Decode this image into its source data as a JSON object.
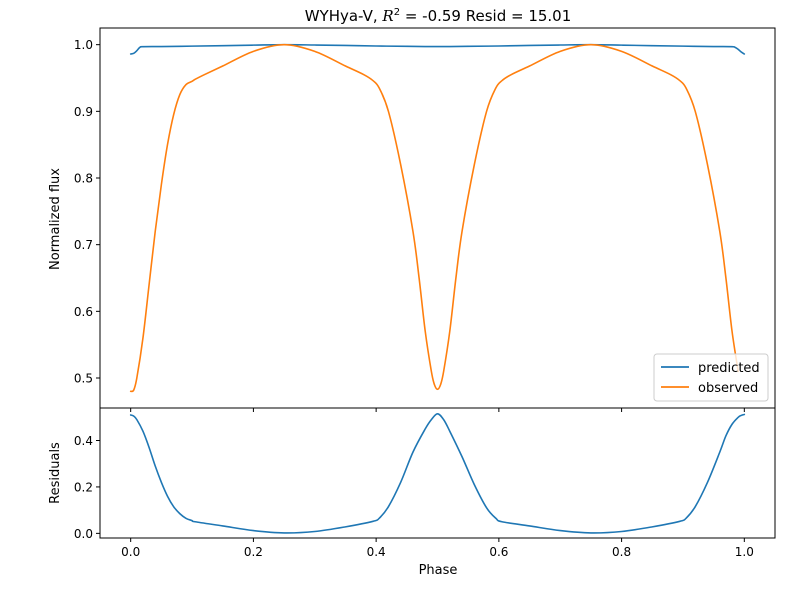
{
  "chart_data": {
    "type": "line",
    "title": "WYHya-V, R² = -0.59 Resid = 15.01",
    "title_parts": {
      "prefix": "WYHya-V, ",
      "r_symbol": "R",
      "r_exponent": "2",
      "suffix": " = -0.59 Resid = 15.01"
    },
    "xlabel": "Phase",
    "xlim": [
      -0.05,
      1.05
    ],
    "xticks": [
      0.0,
      0.2,
      0.4,
      0.6,
      0.8,
      1.0
    ],
    "xtick_labels": [
      "0.0",
      "0.2",
      "0.4",
      "0.6",
      "0.8",
      "1.0"
    ],
    "legend_position": "lower-right",
    "panels": [
      {
        "id": "flux",
        "ylabel": "Normalized flux",
        "ylim": [
          0.455,
          1.025
        ],
        "yticks": [
          0.5,
          0.6,
          0.7,
          0.8,
          0.9,
          1.0
        ],
        "ytick_labels": [
          "0.5",
          "0.6",
          "0.7",
          "0.8",
          "0.9",
          "1.0"
        ],
        "grid": false,
        "series": [
          {
            "name": "predicted",
            "color": "#1f77b4",
            "x": [
              0.0,
              0.005,
              0.01,
              0.015,
              0.02,
              0.05,
              0.1,
              0.15,
              0.2,
              0.25,
              0.3,
              0.35,
              0.4,
              0.45,
              0.48,
              0.5,
              0.52,
              0.55,
              0.6,
              0.65,
              0.7,
              0.75,
              0.8,
              0.85,
              0.9,
              0.95,
              0.98,
              0.985,
              0.99,
              0.995,
              1.0
            ],
            "y": [
              0.986,
              0.987,
              0.991,
              0.996,
              0.997,
              0.9972,
              0.9978,
              0.9985,
              0.9993,
              1.0,
              0.9995,
              0.9988,
              0.998,
              0.9975,
              0.9972,
              0.9971,
              0.9972,
              0.9975,
              0.998,
              0.9988,
              0.9995,
              1.0,
              0.9993,
              0.9985,
              0.9978,
              0.9972,
              0.997,
              0.996,
              0.993,
              0.989,
              0.986
            ]
          },
          {
            "name": "observed",
            "color": "#ff7f0e",
            "x": [
              0.0,
              0.005,
              0.01,
              0.02,
              0.03,
              0.04,
              0.05,
              0.06,
              0.07,
              0.08,
              0.09,
              0.1,
              0.105,
              0.12,
              0.15,
              0.2,
              0.25,
              0.3,
              0.35,
              0.38,
              0.395,
              0.405,
              0.42,
              0.44,
              0.46,
              0.47,
              0.48,
              0.49,
              0.495,
              0.5,
              0.505,
              0.51,
              0.52,
              0.53,
              0.54,
              0.56,
              0.58,
              0.595,
              0.605,
              0.62,
              0.65,
              0.7,
              0.75,
              0.8,
              0.85,
              0.88,
              0.895,
              0.905,
              0.92,
              0.94,
              0.96,
              0.97,
              0.98,
              0.99
            ],
            "y": [
              0.48,
              0.482,
              0.5,
              0.56,
              0.64,
              0.72,
              0.79,
              0.85,
              0.895,
              0.925,
              0.94,
              0.945,
              0.948,
              0.955,
              0.968,
              0.99,
              1.0,
              0.99,
              0.968,
              0.955,
              0.946,
              0.935,
              0.9,
              0.82,
              0.72,
              0.65,
              0.57,
              0.51,
              0.49,
              0.483,
              0.49,
              0.51,
              0.57,
              0.65,
              0.72,
              0.82,
              0.9,
              0.935,
              0.946,
              0.955,
              0.968,
              0.99,
              1.0,
              0.99,
              0.968,
              0.955,
              0.946,
              0.935,
              0.9,
              0.82,
              0.72,
              0.65,
              0.57,
              0.51
            ]
          }
        ]
      },
      {
        "id": "residuals",
        "ylabel": "Residuals",
        "ylim": [
          -0.02,
          0.54
        ],
        "yticks": [
          0.0,
          0.2,
          0.4
        ],
        "ytick_labels": [
          "0.0",
          "0.2",
          "0.4"
        ],
        "grid": false,
        "series": [
          {
            "name": "",
            "color": "#1f77b4",
            "x": [
              0.0,
              0.005,
              0.01,
              0.02,
              0.03,
              0.04,
              0.05,
              0.06,
              0.07,
              0.08,
              0.09,
              0.1,
              0.105,
              0.15,
              0.2,
              0.25,
              0.3,
              0.35,
              0.395,
              0.405,
              0.42,
              0.44,
              0.46,
              0.48,
              0.49,
              0.5,
              0.51,
              0.52,
              0.54,
              0.56,
              0.58,
              0.595,
              0.605,
              0.65,
              0.7,
              0.75,
              0.8,
              0.85,
              0.895,
              0.905,
              0.92,
              0.94,
              0.96,
              0.97,
              0.98,
              0.99,
              0.995,
              1.0
            ],
            "y": [
              0.51,
              0.505,
              0.49,
              0.44,
              0.37,
              0.29,
              0.22,
              0.16,
              0.115,
              0.085,
              0.065,
              0.055,
              0.05,
              0.032,
              0.012,
              0.002,
              0.008,
              0.028,
              0.052,
              0.065,
              0.115,
              0.22,
              0.35,
              0.45,
              0.49,
              0.515,
              0.49,
              0.44,
              0.33,
              0.21,
              0.11,
              0.065,
              0.05,
              0.032,
              0.012,
              0.002,
              0.008,
              0.028,
              0.052,
              0.065,
              0.115,
              0.22,
              0.35,
              0.42,
              0.47,
              0.5,
              0.508,
              0.512
            ]
          }
        ]
      }
    ]
  }
}
